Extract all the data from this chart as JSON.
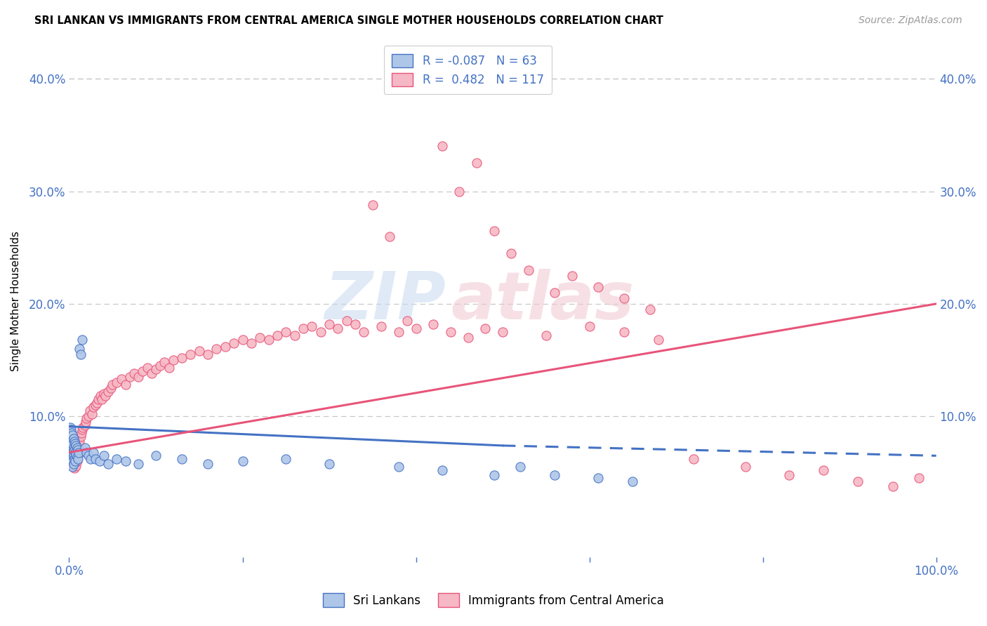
{
  "title": "SRI LANKAN VS IMMIGRANTS FROM CENTRAL AMERICA SINGLE MOTHER HOUSEHOLDS CORRELATION CHART",
  "source": "Source: ZipAtlas.com",
  "ylabel": "Single Mother Households",
  "xlim": [
    0,
    1.0
  ],
  "ylim": [
    -0.025,
    0.43
  ],
  "sri_lankan_color": "#aec6e8",
  "central_america_color": "#f5b8c4",
  "sri_lankan_R": -0.087,
  "sri_lankan_N": 63,
  "central_america_R": 0.482,
  "central_america_N": 117,
  "legend_label_1": "Sri Lankans",
  "legend_label_2": "Immigrants from Central America",
  "watermark_zip": "ZIP",
  "watermark_atlas": "atlas",
  "axis_tick_color": "#4472c4",
  "grid_color": "#c8c8c8",
  "sri_lankan_line_color": "#4472c4",
  "central_america_line_color": "#e8547a",
  "sl_line_solid_end": 0.5,
  "ca_line_start_y": 0.068,
  "ca_line_end_y": 0.2,
  "sl_line_start_y": 0.091,
  "sl_line_end_y": 0.074,
  "sl_line_dashed_end_y": 0.065,
  "sri_lankan_x": [
    0.001,
    0.001,
    0.001,
    0.001,
    0.002,
    0.002,
    0.002,
    0.002,
    0.002,
    0.003,
    0.003,
    0.003,
    0.003,
    0.004,
    0.004,
    0.004,
    0.004,
    0.004,
    0.005,
    0.005,
    0.005,
    0.005,
    0.006,
    0.006,
    0.006,
    0.007,
    0.007,
    0.007,
    0.008,
    0.008,
    0.009,
    0.009,
    0.01,
    0.01,
    0.011,
    0.012,
    0.013,
    0.015,
    0.018,
    0.02,
    0.022,
    0.025,
    0.028,
    0.03,
    0.035,
    0.04,
    0.045,
    0.055,
    0.065,
    0.08,
    0.1,
    0.13,
    0.16,
    0.2,
    0.25,
    0.3,
    0.38,
    0.43,
    0.49,
    0.52,
    0.56,
    0.61,
    0.65
  ],
  "sri_lankan_y": [
    0.09,
    0.082,
    0.075,
    0.07,
    0.088,
    0.08,
    0.072,
    0.065,
    0.06,
    0.085,
    0.078,
    0.07,
    0.062,
    0.083,
    0.075,
    0.068,
    0.06,
    0.055,
    0.08,
    0.072,
    0.065,
    0.058,
    0.078,
    0.07,
    0.062,
    0.076,
    0.068,
    0.06,
    0.074,
    0.066,
    0.072,
    0.064,
    0.07,
    0.062,
    0.068,
    0.16,
    0.155,
    0.168,
    0.072,
    0.068,
    0.065,
    0.062,
    0.068,
    0.062,
    0.06,
    0.065,
    0.058,
    0.062,
    0.06,
    0.058,
    0.065,
    0.062,
    0.058,
    0.06,
    0.062,
    0.058,
    0.055,
    0.052,
    0.048,
    0.055,
    0.048,
    0.045,
    0.042
  ],
  "central_america_x": [
    0.001,
    0.001,
    0.002,
    0.002,
    0.002,
    0.003,
    0.003,
    0.003,
    0.004,
    0.004,
    0.004,
    0.005,
    0.005,
    0.005,
    0.006,
    0.006,
    0.006,
    0.007,
    0.007,
    0.008,
    0.008,
    0.009,
    0.009,
    0.01,
    0.01,
    0.011,
    0.012,
    0.013,
    0.014,
    0.015,
    0.016,
    0.018,
    0.019,
    0.02,
    0.022,
    0.024,
    0.026,
    0.028,
    0.03,
    0.032,
    0.034,
    0.036,
    0.038,
    0.04,
    0.042,
    0.045,
    0.048,
    0.05,
    0.055,
    0.06,
    0.065,
    0.07,
    0.075,
    0.08,
    0.085,
    0.09,
    0.095,
    0.1,
    0.105,
    0.11,
    0.115,
    0.12,
    0.13,
    0.14,
    0.15,
    0.16,
    0.17,
    0.18,
    0.19,
    0.2,
    0.21,
    0.22,
    0.23,
    0.24,
    0.25,
    0.26,
    0.27,
    0.28,
    0.29,
    0.3,
    0.31,
    0.32,
    0.33,
    0.34,
    0.35,
    0.36,
    0.37,
    0.38,
    0.39,
    0.4,
    0.42,
    0.44,
    0.46,
    0.48,
    0.5,
    0.55,
    0.6,
    0.64,
    0.68,
    0.72,
    0.78,
    0.83,
    0.87,
    0.91,
    0.95,
    0.98,
    0.43,
    0.45,
    0.47,
    0.49,
    0.51,
    0.53,
    0.56,
    0.58,
    0.61,
    0.64,
    0.67
  ],
  "central_america_y": [
    0.07,
    0.065,
    0.075,
    0.068,
    0.062,
    0.072,
    0.065,
    0.058,
    0.07,
    0.063,
    0.056,
    0.068,
    0.061,
    0.055,
    0.066,
    0.06,
    0.054,
    0.064,
    0.058,
    0.062,
    0.056,
    0.06,
    0.068,
    0.072,
    0.065,
    0.075,
    0.078,
    0.082,
    0.085,
    0.088,
    0.09,
    0.092,
    0.095,
    0.098,
    0.1,
    0.105,
    0.102,
    0.108,
    0.11,
    0.112,
    0.115,
    0.118,
    0.115,
    0.12,
    0.118,
    0.122,
    0.125,
    0.128,
    0.13,
    0.133,
    0.128,
    0.135,
    0.138,
    0.135,
    0.14,
    0.143,
    0.138,
    0.142,
    0.145,
    0.148,
    0.143,
    0.15,
    0.152,
    0.155,
    0.158,
    0.155,
    0.16,
    0.162,
    0.165,
    0.168,
    0.165,
    0.17,
    0.168,
    0.172,
    0.175,
    0.172,
    0.178,
    0.18,
    0.175,
    0.182,
    0.178,
    0.185,
    0.182,
    0.175,
    0.288,
    0.18,
    0.26,
    0.175,
    0.185,
    0.178,
    0.182,
    0.175,
    0.17,
    0.178,
    0.175,
    0.172,
    0.18,
    0.175,
    0.168,
    0.062,
    0.055,
    0.048,
    0.052,
    0.042,
    0.038,
    0.045,
    0.34,
    0.3,
    0.325,
    0.265,
    0.245,
    0.23,
    0.21,
    0.225,
    0.215,
    0.205,
    0.195
  ]
}
